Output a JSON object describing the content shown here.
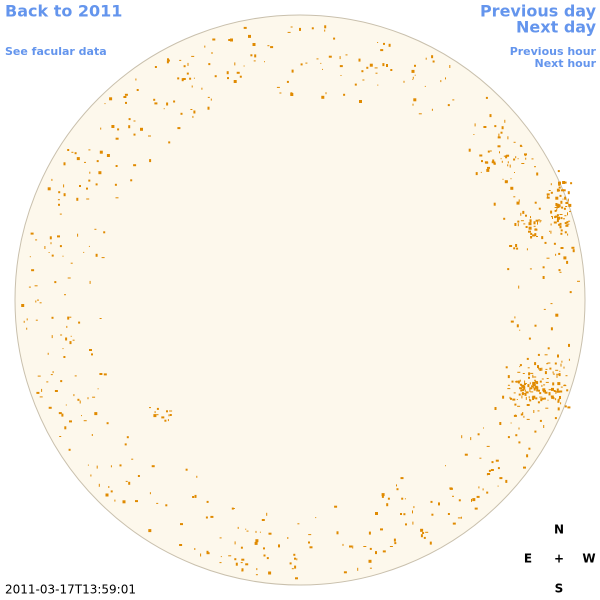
{
  "links": {
    "back": "Back to 2011",
    "facular": "See facular data",
    "previous_day": "Previous day",
    "next_day": "Next day",
    "previous_hour": "Previous hour",
    "next_hour": "Next hour"
  },
  "timestamp": "2011-03-17T13:59:01",
  "compass": {
    "north": "N",
    "east": "E",
    "center": "+",
    "west": "W",
    "south": "S"
  }
}
